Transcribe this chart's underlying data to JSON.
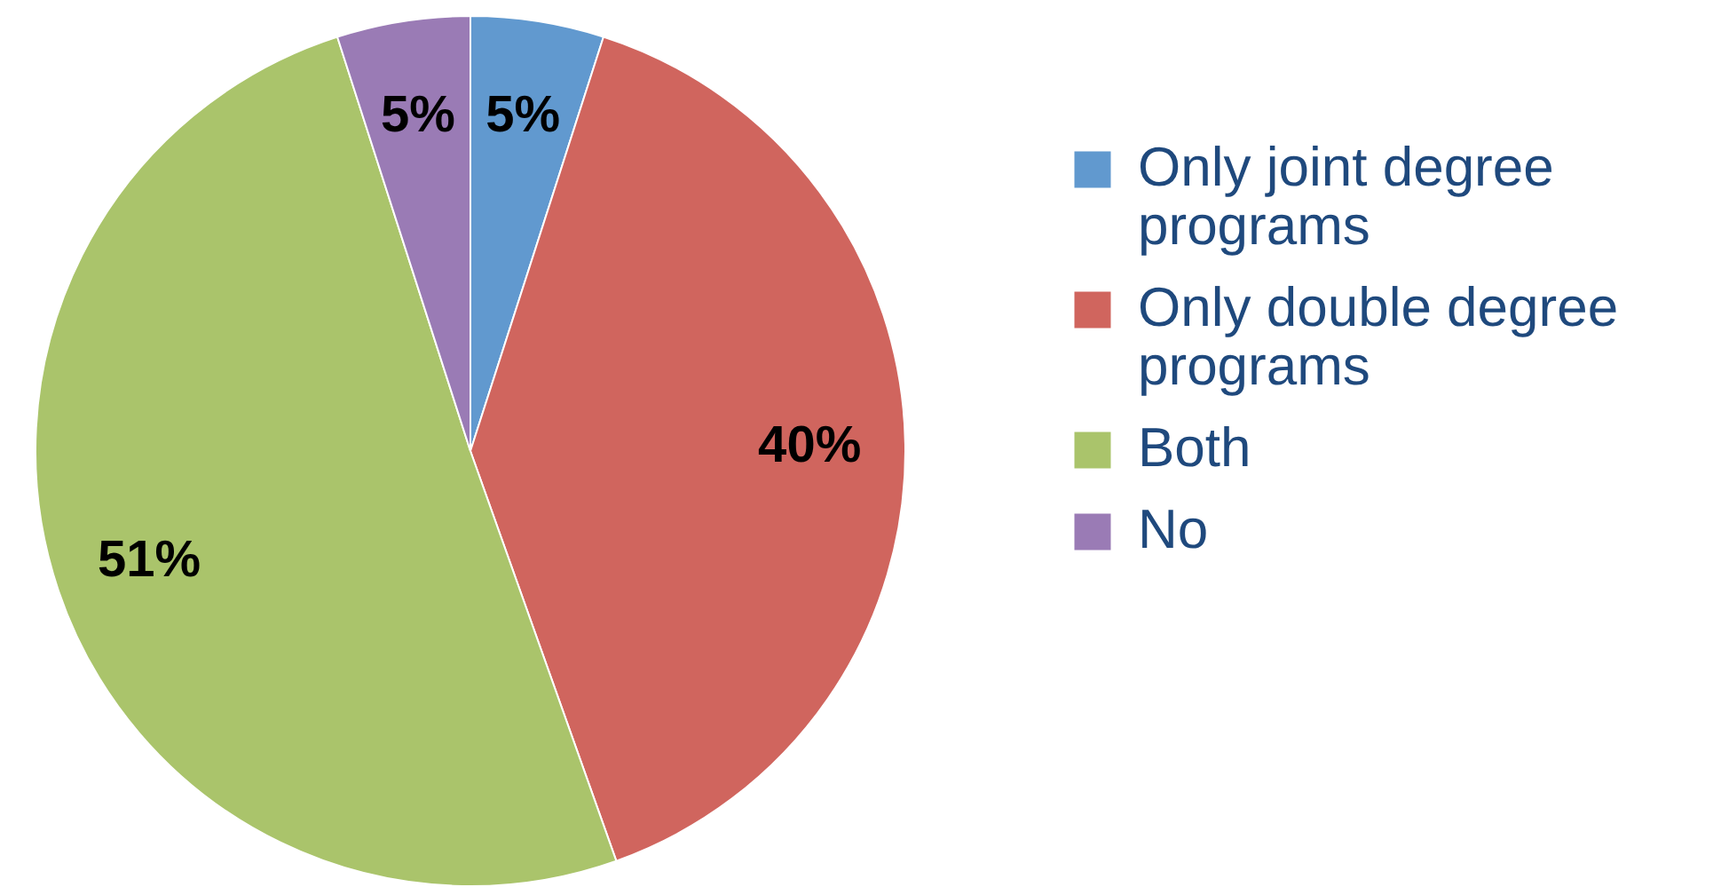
{
  "chart_data": {
    "type": "pie",
    "categories": [
      "Only joint degree programs",
      "Only double degree programs",
      "Both",
      "No"
    ],
    "values": [
      5,
      40,
      51,
      5
    ],
    "colors": [
      "#6199cf",
      "#d0655e",
      "#aac46b",
      "#9a7bb5"
    ],
    "value_labels": [
      "5%",
      "40%",
      "51%",
      "5%"
    ],
    "legend": "right"
  }
}
